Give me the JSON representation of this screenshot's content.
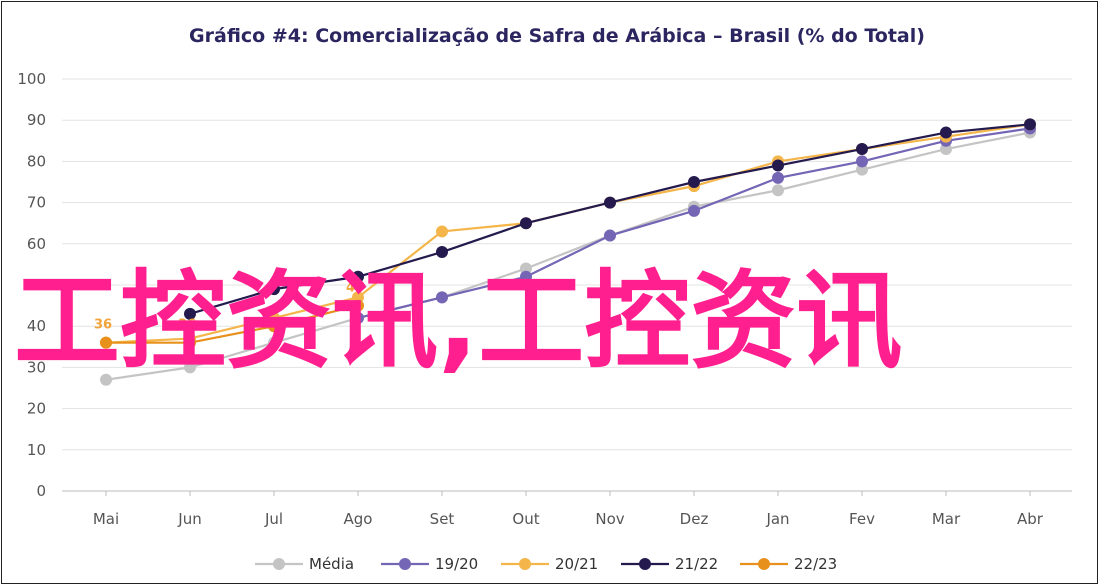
{
  "chart_data": {
    "type": "line",
    "title": "Gráfico #4: Comercialização de Safra de Arábica – Brasil (% do Total)",
    "xlabel": "",
    "ylabel": "",
    "categories": [
      "Mai",
      "Jun",
      "Jul",
      "Ago",
      "Set",
      "Out",
      "Nov",
      "Dez",
      "Jan",
      "Fev",
      "Mar",
      "Abr"
    ],
    "ylim": [
      0,
      100
    ],
    "yticks": [
      "0",
      "10",
      "20",
      "30",
      "40",
      "50",
      "60",
      "70",
      "80",
      "90",
      "100"
    ],
    "grid": true,
    "legend_position": "bottom",
    "series": [
      {
        "name": "Média",
        "color": "#c4c4c4",
        "values": [
          27,
          30,
          36,
          42,
          47,
          54,
          62,
          69,
          73,
          78,
          83,
          87
        ]
      },
      {
        "name": "19/20",
        "color": "#7565b5",
        "values": [
          null,
          null,
          null,
          42,
          47,
          52,
          62,
          68,
          76,
          80,
          85,
          88
        ]
      },
      {
        "name": "20/21",
        "color": "#f4b54a",
        "values": [
          36,
          37,
          42,
          47,
          63,
          65,
          70,
          74,
          80,
          83,
          86,
          89
        ]
      },
      {
        "name": "21/22",
        "color": "#241a4e",
        "values": [
          null,
          43,
          49,
          52,
          58,
          65,
          70,
          75,
          79,
          83,
          87,
          89
        ]
      },
      {
        "name": "22/23",
        "color": "#e8901c",
        "values": [
          36,
          36,
          40,
          45,
          null,
          null,
          null,
          null,
          null,
          null,
          null,
          null
        ]
      }
    ],
    "data_labels": [
      {
        "series": "22/23",
        "index": 0,
        "text": "36"
      },
      {
        "series": "22/23",
        "index": 1,
        "text": "36"
      },
      {
        "series": "22/23",
        "index": 3,
        "text": "45"
      }
    ]
  },
  "watermark": "工控资讯,工控资讯"
}
